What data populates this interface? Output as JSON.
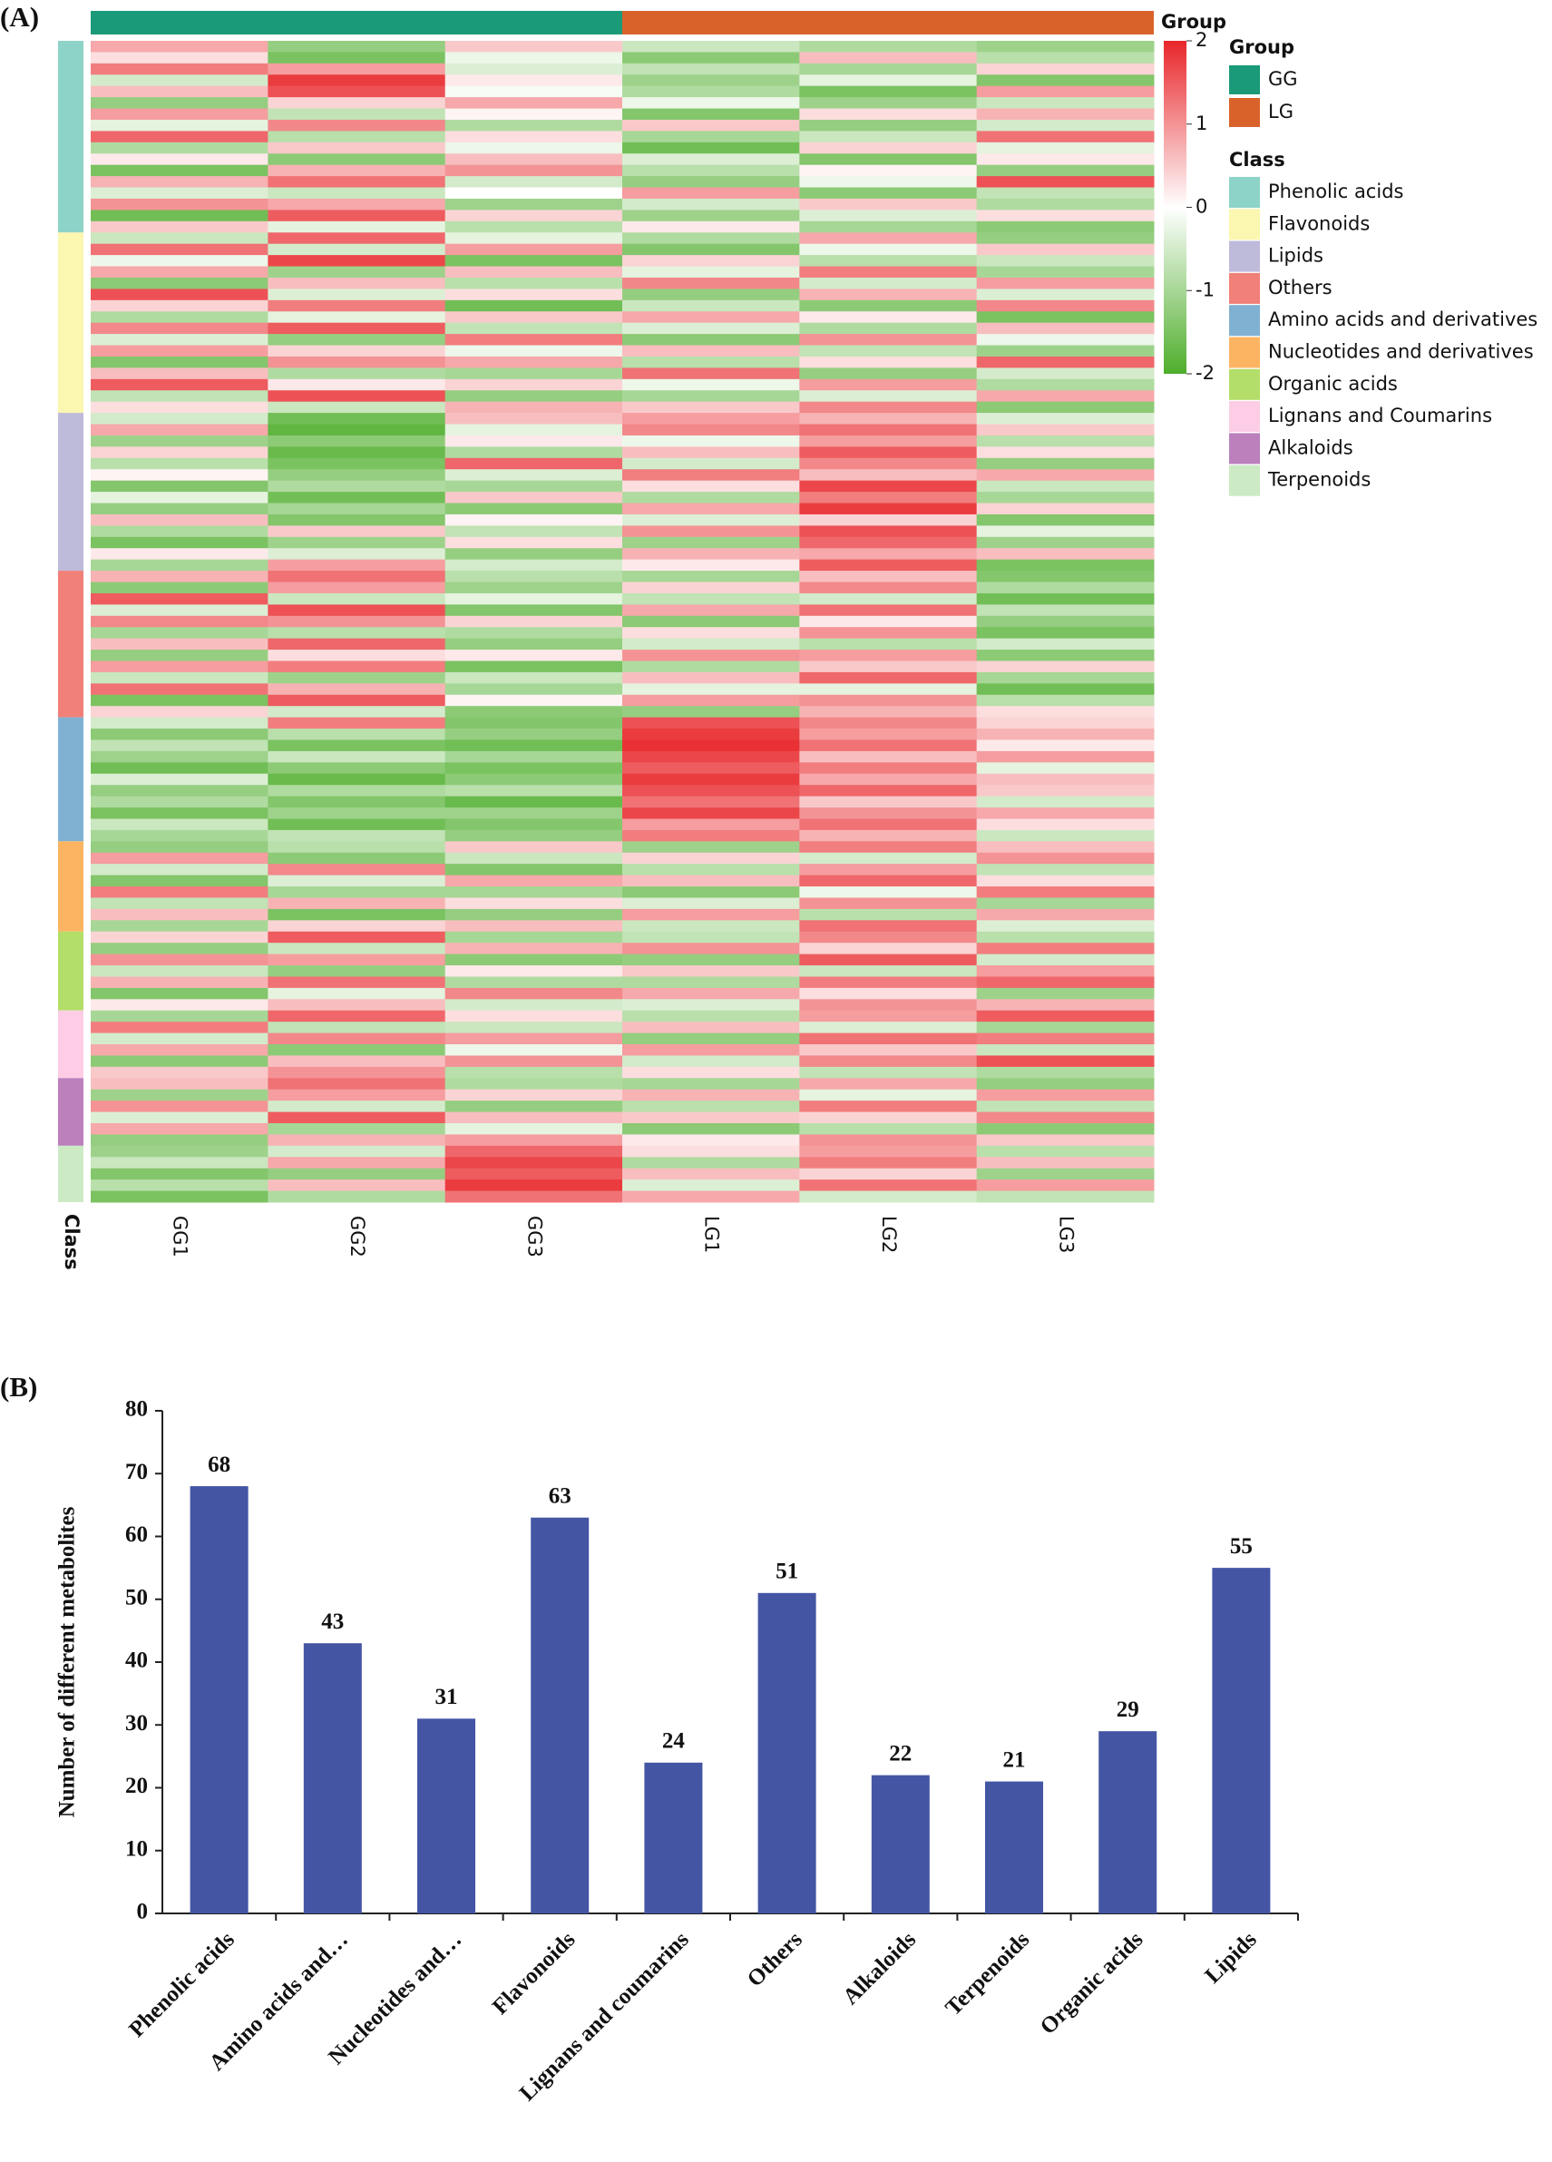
{
  "chart_data": [
    {
      "type": "heatmap",
      "panel_label": "(A)",
      "group_annotation_label": "Group",
      "class_annotation_label": "Class",
      "group_legend_title": "Group",
      "class_legend_title": "Class",
      "colormap": [
        "#4fae2c",
        "#ffffff",
        "#e8262a"
      ],
      "colorlim": [
        -2,
        2
      ],
      "colorticks": [
        2,
        1,
        0,
        -1,
        -2
      ],
      "groups": [
        {
          "name": "GG",
          "color": "#1a9a78",
          "columns": [
            "GG1",
            "GG2",
            "GG3"
          ]
        },
        {
          "name": "LG",
          "color": "#d9622b",
          "columns": [
            "LG1",
            "LG2",
            "LG3"
          ]
        }
      ],
      "classes": [
        {
          "name": "Phenolic acids",
          "color": "#8dd3c7",
          "values": [
            [
              0.8,
              -1.2,
              0.5,
              -0.6,
              -0.9,
              -1.1
            ],
            [
              0.3,
              -1.5,
              -0.2,
              -1.3,
              0.6,
              -0.8
            ],
            [
              1.2,
              0.9,
              -0.4,
              -0.7,
              -1.0,
              0.4
            ],
            [
              -0.5,
              1.8,
              0.2,
              -1.1,
              -0.3,
              -1.4
            ],
            [
              0.6,
              1.6,
              -0.1,
              -0.9,
              -1.5,
              0.9
            ],
            [
              -1.2,
              0.4,
              0.8,
              -0.2,
              -1.1,
              -0.6
            ],
            [
              0.9,
              -0.7,
              0.1,
              -1.4,
              0.3,
              0.7
            ],
            [
              -0.3,
              1.1,
              -0.9,
              0.5,
              -1.2,
              -0.5
            ],
            [
              1.4,
              -0.8,
              0.3,
              -1.0,
              -0.6,
              1.3
            ],
            [
              -0.9,
              0.5,
              -0.2,
              -1.6,
              0.4,
              -0.3
            ],
            [
              0.2,
              -1.3,
              0.6,
              -0.4,
              -1.4,
              0.2
            ],
            [
              -1.5,
              0.7,
              1.0,
              -0.8,
              0.1,
              -1.2
            ],
            [
              0.7,
              1.3,
              -0.5,
              -1.2,
              -0.2,
              1.6
            ],
            [
              -0.4,
              -0.6,
              0.0,
              0.9,
              -1.3,
              -0.7
            ],
            [
              1.0,
              0.8,
              -1.1,
              -0.5,
              0.5,
              -0.9
            ],
            [
              -1.6,
              1.5,
              0.4,
              -1.1,
              -0.4,
              0.3
            ],
            [
              0.5,
              -0.3,
              -0.8,
              0.2,
              -1.0,
              -1.3
            ]
          ]
        },
        {
          "name": "Flavonoids",
          "color": "#fbf6b0",
          "values": [
            [
              -0.6,
              1.4,
              -0.3,
              -0.9,
              0.8,
              -1.2
            ],
            [
              1.3,
              -0.5,
              0.9,
              -1.4,
              -0.2,
              0.5
            ],
            [
              -0.2,
              1.7,
              -1.5,
              0.4,
              -0.8,
              -0.6
            ],
            [
              0.8,
              -1.1,
              0.6,
              -0.3,
              1.2,
              -1.0
            ],
            [
              -1.3,
              0.6,
              -0.8,
              1.1,
              -0.5,
              0.9
            ],
            [
              1.6,
              -0.4,
              0.3,
              -1.2,
              0.7,
              -0.4
            ],
            [
              0.4,
              1.2,
              -1.6,
              -0.6,
              -1.3,
              1.1
            ],
            [
              -0.9,
              -0.3,
              0.5,
              0.8,
              0.2,
              -1.5
            ],
            [
              1.1,
              1.5,
              -0.7,
              -0.4,
              -0.9,
              0.6
            ],
            [
              -0.4,
              -1.2,
              1.2,
              -1.3,
              1.0,
              -0.2
            ],
            [
              0.9,
              0.4,
              -0.2,
              0.6,
              -0.7,
              -1.1
            ],
            [
              -1.4,
              1.0,
              0.8,
              -0.8,
              0.3,
              1.4
            ],
            [
              0.6,
              -0.9,
              -1.0,
              1.3,
              -1.2,
              -0.5
            ],
            [
              1.5,
              0.2,
              0.4,
              -0.2,
              0.9,
              -0.9
            ],
            [
              -0.7,
              1.6,
              -1.2,
              -1.0,
              -0.4,
              0.8
            ],
            [
              0.3,
              -0.6,
              0.7,
              0.5,
              1.1,
              -1.3
            ]
          ]
        },
        {
          "name": "Lipids",
          "color": "#bebada",
          "values": [
            [
              -0.5,
              -1.6,
              0.6,
              0.9,
              0.7,
              -0.4
            ],
            [
              0.8,
              -1.8,
              -0.3,
              1.1,
              1.3,
              0.5
            ],
            [
              -1.1,
              -1.3,
              0.2,
              -0.2,
              0.9,
              -0.8
            ],
            [
              0.4,
              -1.7,
              -0.9,
              0.6,
              1.5,
              0.3
            ],
            [
              -0.8,
              -1.5,
              1.4,
              -0.5,
              1.1,
              -1.2
            ],
            [
              0.1,
              -1.2,
              -0.4,
              1.2,
              0.6,
              0.8
            ],
            [
              -1.4,
              -0.9,
              -1.0,
              0.3,
              1.7,
              -0.6
            ],
            [
              -0.3,
              -1.6,
              0.5,
              -0.9,
              1.2,
              -1.0
            ],
            [
              -1.2,
              -1.0,
              -1.3,
              0.8,
              1.8,
              0.4
            ],
            [
              0.6,
              -1.4,
              0.1,
              -0.4,
              0.4,
              -1.4
            ],
            [
              -0.9,
              0.5,
              -0.7,
              1.0,
              1.6,
              -0.3
            ],
            [
              -1.5,
              -1.1,
              0.3,
              -1.1,
              1.4,
              -1.1
            ],
            [
              0.2,
              -0.4,
              -1.2,
              0.7,
              0.8,
              0.6
            ],
            [
              -1.0,
              0.9,
              -0.5,
              0.2,
              1.5,
              -1.5
            ]
          ]
        },
        {
          "name": "Others",
          "color": "#f08078",
          "values": [
            [
              0.7,
              1.3,
              -0.8,
              -1.0,
              0.6,
              -1.4
            ],
            [
              -1.3,
              0.9,
              -1.1,
              0.4,
              1.1,
              -0.9
            ],
            [
              1.5,
              -0.6,
              -0.3,
              -0.7,
              -0.5,
              -1.6
            ],
            [
              -0.4,
              1.6,
              -1.4,
              0.8,
              1.3,
              -0.7
            ],
            [
              1.1,
              1.0,
              0.4,
              -1.3,
              0.2,
              -1.2
            ],
            [
              -1.0,
              -0.8,
              -0.9,
              0.3,
              1.0,
              -1.5
            ],
            [
              0.6,
              1.4,
              -1.2,
              -0.5,
              -0.8,
              -0.5
            ],
            [
              -1.2,
              0.3,
              0.2,
              1.0,
              0.9,
              -1.3
            ],
            [
              0.9,
              1.2,
              -1.5,
              -0.9,
              0.5,
              0.4
            ],
            [
              -0.6,
              -1.1,
              -0.6,
              0.6,
              1.4,
              -1.0
            ],
            [
              1.3,
              0.7,
              -1.0,
              -0.3,
              -0.3,
              -1.6
            ],
            [
              -1.5,
              1.5,
              0.1,
              0.9,
              1.0,
              -0.8
            ],
            [
              0.4,
              -0.5,
              -1.3,
              -1.2,
              0.7,
              0.3
            ]
          ]
        },
        {
          "name": "Amino acids and derivatives",
          "color": "#80b1d3",
          "values": [
            [
              -0.5,
              1.2,
              -1.4,
              1.6,
              1.1,
              0.4
            ],
            [
              -1.3,
              -0.8,
              -1.2,
              1.8,
              0.9,
              0.7
            ],
            [
              -0.7,
              -1.5,
              -1.6,
              1.9,
              1.3,
              0.2
            ],
            [
              -1.1,
              -0.6,
              -1.0,
              1.7,
              0.6,
              0.9
            ],
            [
              -1.6,
              -1.3,
              -1.5,
              1.5,
              1.2,
              -0.3
            ],
            [
              -0.4,
              -1.7,
              -1.3,
              1.8,
              0.8,
              0.6
            ],
            [
              -1.2,
              -0.9,
              -0.8,
              1.6,
              1.4,
              0.5
            ],
            [
              -0.9,
              -1.4,
              -1.7,
              1.3,
              0.5,
              -0.5
            ],
            [
              -1.5,
              -1.1,
              -1.1,
              1.7,
              1.0,
              0.8
            ],
            [
              -0.6,
              -1.6,
              -1.4,
              0.9,
              1.3,
              0.3
            ],
            [
              -1.0,
              -0.7,
              -1.2,
              1.2,
              0.7,
              -0.6
            ]
          ]
        },
        {
          "name": "Nucleotides and derivatives",
          "color": "#fdb462",
          "values": [
            [
              -1.2,
              -0.8,
              0.5,
              -1.1,
              1.2,
              0.6
            ],
            [
              0.9,
              -1.3,
              -0.6,
              0.4,
              -0.5,
              1.0
            ],
            [
              -0.5,
              1.1,
              -1.4,
              -0.8,
              0.9,
              -0.7
            ],
            [
              -1.4,
              -0.4,
              0.8,
              0.6,
              1.4,
              0.3
            ],
            [
              1.2,
              -1.0,
              -1.0,
              -1.3,
              -0.2,
              1.2
            ],
            [
              -0.7,
              0.7,
              0.3,
              -0.4,
              1.0,
              -1.0
            ],
            [
              0.6,
              -1.5,
              -1.2,
              0.9,
              -0.8,
              0.8
            ],
            [
              -1.0,
              0.4,
              0.6,
              -0.6,
              1.3,
              -0.4
            ]
          ]
        },
        {
          "name": "Organic acids",
          "color": "#b3de69",
          "values": [
            [
              0.4,
              1.5,
              -1.0,
              -0.7,
              1.1,
              -0.8
            ],
            [
              -1.2,
              -0.6,
              0.7,
              1.0,
              0.4,
              1.2
            ],
            [
              1.0,
              0.9,
              -1.3,
              -1.2,
              1.5,
              -0.5
            ],
            [
              -0.6,
              -1.2,
              0.2,
              0.5,
              -0.6,
              0.9
            ],
            [
              0.7,
              1.3,
              -0.9,
              -0.9,
              1.2,
              1.4
            ],
            [
              -1.4,
              -0.3,
              1.1,
              0.8,
              0.3,
              -1.1
            ],
            [
              0.2,
              0.6,
              -0.5,
              -0.4,
              1.0,
              0.7
            ]
          ]
        },
        {
          "name": "Lignans and Coumarins",
          "color": "#fccde5",
          "values": [
            [
              -1.0,
              1.4,
              0.3,
              -0.8,
              0.9,
              1.5
            ],
            [
              1.2,
              -0.7,
              -0.6,
              0.6,
              -0.4,
              -1.0
            ],
            [
              -0.5,
              1.1,
              0.9,
              -1.2,
              1.3,
              1.2
            ],
            [
              0.8,
              -1.3,
              -0.2,
              0.9,
              0.5,
              -0.6
            ],
            [
              -1.3,
              0.6,
              1.0,
              -0.5,
              1.1,
              1.6
            ],
            [
              0.5,
              1.0,
              -0.8,
              0.3,
              -0.7,
              -0.9
            ]
          ]
        },
        {
          "name": "Alkaloids",
          "color": "#bc80bd",
          "values": [
            [
              0.6,
              1.3,
              -0.9,
              -1.0,
              0.8,
              -1.2
            ],
            [
              -1.1,
              0.9,
              0.4,
              0.7,
              -0.3,
              0.9
            ],
            [
              1.0,
              -0.5,
              -1.2,
              -0.8,
              1.2,
              -0.7
            ],
            [
              -0.4,
              1.5,
              0.6,
              0.5,
              0.4,
              1.1
            ],
            [
              0.8,
              -1.0,
              -0.3,
              -1.3,
              -0.8,
              -1.3
            ],
            [
              -1.2,
              0.7,
              0.9,
              0.2,
              1.0,
              0.5
            ]
          ]
        },
        {
          "name": "Terpenoids",
          "color": "#ccebc5",
          "values": [
            [
              -1.1,
              -0.5,
              1.4,
              0.3,
              0.9,
              -0.8
            ],
            [
              -0.6,
              0.8,
              1.7,
              -0.9,
              1.2,
              0.6
            ],
            [
              -1.4,
              -1.2,
              1.5,
              0.6,
              0.4,
              -1.1
            ],
            [
              -0.8,
              0.6,
              1.8,
              -0.4,
              1.3,
              0.9
            ],
            [
              -1.5,
              -0.9,
              1.3,
              0.8,
              -0.5,
              -0.7
            ]
          ]
        }
      ]
    },
    {
      "type": "bar",
      "panel_label": "(B)",
      "y_label": "Number of different metabolites",
      "categories": [
        "Phenolic acids",
        "Amino acids and…",
        "Nucleotides and…",
        "Flavonoids",
        "Lignans and coumarins",
        "Others",
        "Alkaloids",
        "Terpenoids",
        "Organic acids",
        "Lipids"
      ],
      "values": [
        68,
        43,
        31,
        63,
        24,
        51,
        22,
        21,
        29,
        55
      ],
      "color": "#4455a4",
      "ylim": [
        0,
        80
      ],
      "yticks": [
        0,
        10,
        20,
        30,
        40,
        50,
        60,
        70,
        80
      ]
    }
  ]
}
